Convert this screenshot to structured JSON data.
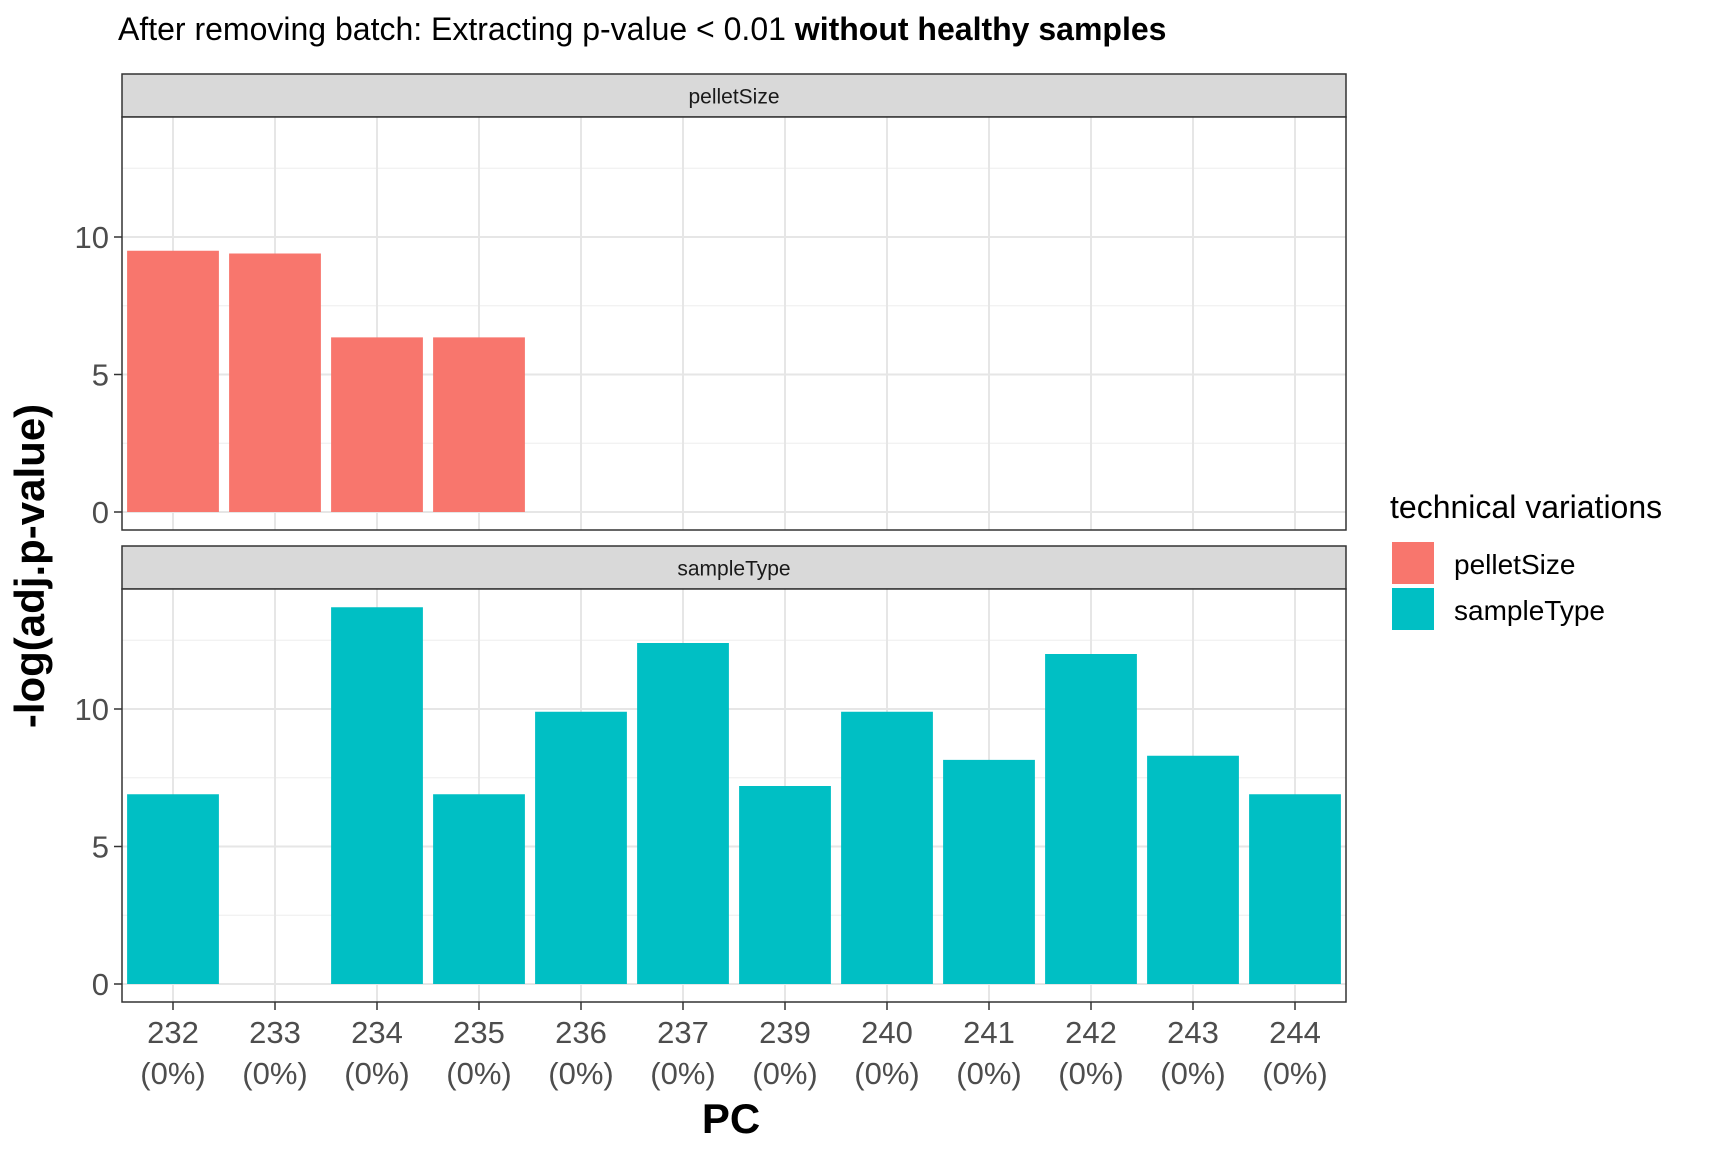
{
  "chart_data": {
    "type": "bar",
    "title": {
      "plain": "After removing batch: Extracting p-value < 0.01 ",
      "bold": "without healthy samples"
    },
    "xlabel": "PC",
    "ylabel": "-log(adj.p-value)",
    "categories": [
      "232",
      "233",
      "234",
      "235",
      "236",
      "237",
      "239",
      "240",
      "241",
      "242",
      "243",
      "244"
    ],
    "category_sublabels": [
      "(0%)",
      "(0%)",
      "(0%)",
      "(0%)",
      "(0%)",
      "(0%)",
      "(0%)",
      "(0%)",
      "(0%)",
      "(0%)",
      "(0%)",
      "(0%)"
    ],
    "ylim": [
      0,
      14.5
    ],
    "yticks": [
      0,
      5,
      10
    ],
    "grid": true,
    "facets": [
      {
        "label": "pelletSize",
        "series": "pelletSize",
        "values": [
          9.5,
          9.4,
          6.35,
          6.35,
          null,
          null,
          null,
          null,
          null,
          null,
          null,
          null
        ]
      },
      {
        "label": "sampleType",
        "series": "sampleType",
        "values": [
          6.9,
          null,
          13.7,
          6.9,
          9.9,
          12.4,
          7.2,
          9.9,
          8.15,
          12.0,
          8.3,
          6.9
        ]
      }
    ],
    "legend": {
      "title": "technical variations",
      "position": "right",
      "items": [
        {
          "name": "pelletSize",
          "color": "#F8766D"
        },
        {
          "name": "sampleType",
          "color": "#00BFC4"
        }
      ]
    }
  }
}
